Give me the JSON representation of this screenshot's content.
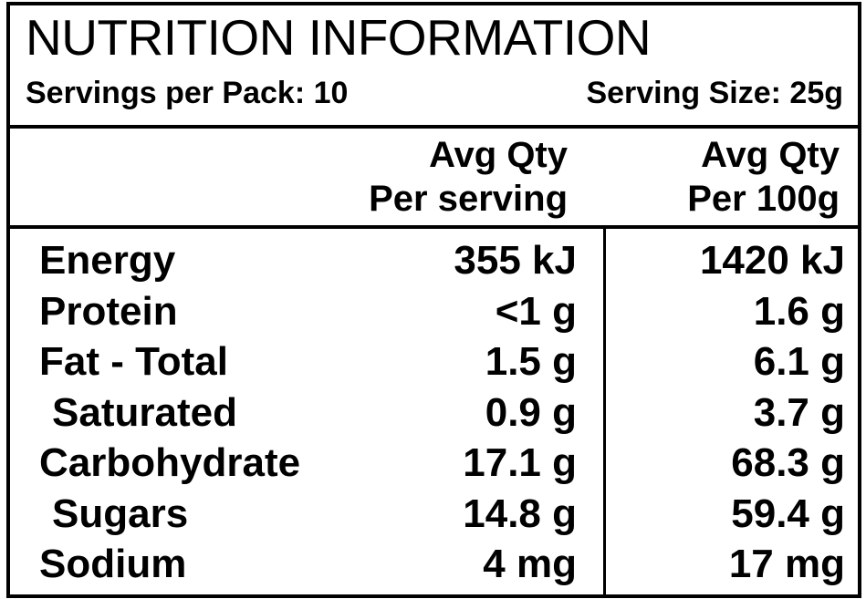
{
  "title": "NUTRITION INFORMATION",
  "servings_per_pack": "Servings per Pack: 10",
  "serving_size": "Serving Size: 25g",
  "headers": {
    "per_serving": [
      "Avg Qty",
      "Per serving"
    ],
    "per_100g": [
      "Avg Qty",
      "Per 100g"
    ]
  },
  "rows": [
    {
      "name": "Energy",
      "per_serving": "355 kJ",
      "per_100g": "1420 kJ"
    },
    {
      "name": "Protein",
      "per_serving": "<1 g",
      "per_100g": "1.6 g"
    },
    {
      "name": "Fat - Total",
      "per_serving": "1.5 g",
      "per_100g": "6.1 g"
    },
    {
      "name": "Saturated",
      "per_serving": "0.9 g",
      "per_100g": "3.7 g"
    },
    {
      "name": "Carbohydrate",
      "per_serving": "17.1 g",
      "per_100g": "68.3 g"
    },
    {
      "name": "Sugars",
      "per_serving": "14.8 g",
      "per_100g": "59.4 g"
    },
    {
      "name": "Sodium",
      "per_serving": "4 mg",
      "per_100g": "17 mg"
    }
  ]
}
